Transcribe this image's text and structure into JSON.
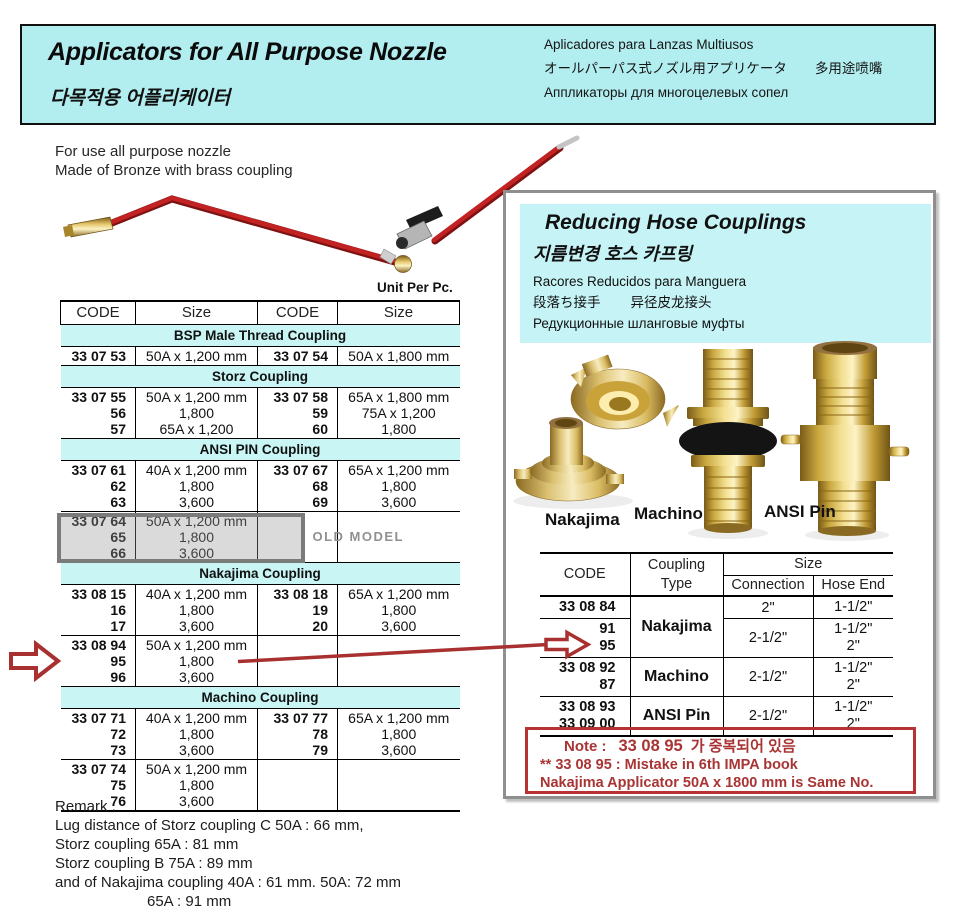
{
  "header": {
    "title": "Applicators for All Purpose Nozzle",
    "title_korean": "다목적용 어플리케이터",
    "subtitle_spanish": "Aplicadores para Lanzas Multiusos",
    "subtitle_japanese": "オールパーパス式ノズル用アプリケータ",
    "subtitle_chinese": "多用途喷嘴",
    "subtitle_russian": "Аппликаторы для многоцелевых сопел"
  },
  "description": {
    "line1": "For use all purpose nozzle",
    "line2": "Made of Bronze with brass coupling"
  },
  "unit_label": "Unit Per Pc.",
  "left_table": {
    "columns": [
      "CODE",
      "Size",
      "CODE",
      "Size"
    ],
    "sections": [
      {
        "title": "BSP Male Thread Coupling",
        "rows": [
          {
            "l_code": [
              "33 07 53"
            ],
            "l_size": [
              "50A x 1,200 mm"
            ],
            "r_code": [
              "33 07 54"
            ],
            "r_size": [
              "50A x 1,800 mm"
            ]
          }
        ]
      },
      {
        "title": "Storz Coupling",
        "rows": [
          {
            "l_code": [
              "33 07 55",
              "56",
              "57"
            ],
            "l_size": [
              "50A x 1,200 mm",
              "1,800",
              "65A x 1,200"
            ],
            "r_code": [
              "33 07 58",
              "59",
              "60"
            ],
            "r_size": [
              "65A x 1,800 mm",
              "75A x 1,200",
              "1,800"
            ]
          }
        ]
      },
      {
        "title": "ANSI PIN Coupling",
        "rows": [
          {
            "l_code": [
              "33 07 61",
              "62",
              "63"
            ],
            "l_size": [
              "40A x 1,200 mm",
              "1,800",
              "3,600"
            ],
            "r_code": [
              "33 07 67",
              "68",
              "69"
            ],
            "r_size": [
              "65A x 1,200 mm",
              "1,800",
              "3,600"
            ]
          },
          {
            "l_code": [
              "33 07 64",
              "65",
              "66"
            ],
            "l_size": [
              "50A x 1,200 mm",
              "1,800",
              "3,600"
            ],
            "r_code": [],
            "r_size": [],
            "flag": "old-model",
            "old_model_label": "OLD MODEL"
          }
        ]
      },
      {
        "title": "Nakajima Coupling",
        "rows": [
          {
            "l_code": [
              "33 08 15",
              "16",
              "17"
            ],
            "l_size": [
              "40A x 1,200 mm",
              "1,800",
              "3,600"
            ],
            "r_code": [
              "33 08 18",
              "19",
              "20"
            ],
            "r_size": [
              "65A x 1,200 mm",
              "1,800",
              "3,600"
            ]
          },
          {
            "l_code": [
              "33 08 94",
              "95",
              "96"
            ],
            "l_size": [
              "50A x 1,200 mm",
              "1,800",
              "3,600"
            ],
            "r_code": [],
            "r_size": [],
            "flag": "arrow"
          }
        ]
      },
      {
        "title": "Machino Coupling",
        "rows": [
          {
            "l_code": [
              "33 07 71",
              "72",
              "73"
            ],
            "l_size": [
              "40A x 1,200 mm",
              "1,800",
              "3,600"
            ],
            "r_code": [
              "33 07 77",
              "78",
              "79"
            ],
            "r_size": [
              "65A x 1,200 mm",
              "1,800",
              "3,600"
            ]
          },
          {
            "l_code": [
              "33 07 74",
              "75",
              "76"
            ],
            "l_size": [
              "50A x 1,200 mm",
              "1,800",
              "3,600"
            ],
            "r_code": [],
            "r_size": []
          }
        ]
      }
    ]
  },
  "remark": {
    "lines": [
      "Remark :",
      "Lug distance of Storz coupling C 50A : 66 mm,",
      "Storz coupling 65A : 81 mm",
      "Storz coupling B 75A : 89 mm",
      "and of Nakajima coupling 40A : 61 mm. 50A: 72 mm",
      "65A : 91 mm"
    ]
  },
  "right_panel": {
    "header": {
      "title": "Reducing Hose Couplings",
      "title_korean": "지름변경 호스 카프링",
      "sub_spanish": "Racores Reducidos para Manguera",
      "sub_japanese": "段落ち接手",
      "sub_chinese": "异径皮龙接头",
      "sub_russian": "Редукционные шланговые муфты"
    },
    "image_labels": [
      "Nakajima",
      "Machino",
      "ANSI Pin"
    ],
    "table": {
      "headers": {
        "code": "CODE",
        "type_line1": "Coupling",
        "type_line2": "Type",
        "size": "Size",
        "connection": "Connection",
        "hose_end": "Hose End"
      },
      "rows": [
        {
          "codes": [
            "33 08 84"
          ],
          "type": "Nakajima",
          "type_rowspan": 2,
          "connection": "2\"",
          "hose_end": [
            "1-1/2\""
          ]
        },
        {
          "codes": [
            "91",
            "95"
          ],
          "connection": "2-1/2\"",
          "hose_end": [
            "1-1/2\"",
            "2\""
          ],
          "flag": "arrow"
        },
        {
          "codes": [
            "33 08 92",
            "87"
          ],
          "type": "Machino",
          "type_rowspan": 1,
          "connection": "2-1/2\"",
          "hose_end": [
            "1-1/2\"",
            "2\""
          ]
        },
        {
          "codes": [
            "33 08 93",
            "33 09 00"
          ],
          "type": "ANSI Pin",
          "type_rowspan": 1,
          "connection": "2-1/2\"",
          "hose_end": [
            "1-1/2\"",
            "2\""
          ]
        }
      ]
    },
    "note": {
      "label": "Note :",
      "code": "33 08 95",
      "korean_text": "가 중복되어 있음",
      "line2": "** 33 08 95 : Mistake in 6th IMPA book",
      "line3": "Nakajima Applicator 50A x 1800 mm is Same No."
    }
  },
  "colors": {
    "header_cyan": "#b2edef",
    "section_cyan": "#c9f5f5",
    "panel_cyan": "#c6f3f5",
    "accent_red": "#a83030",
    "wand_red": "#c32222",
    "note_red": "#a93434",
    "panel_border_gray": "#8f8f8f",
    "old_model_gray": "#7b7b7b",
    "brass": "#d9b54a"
  }
}
